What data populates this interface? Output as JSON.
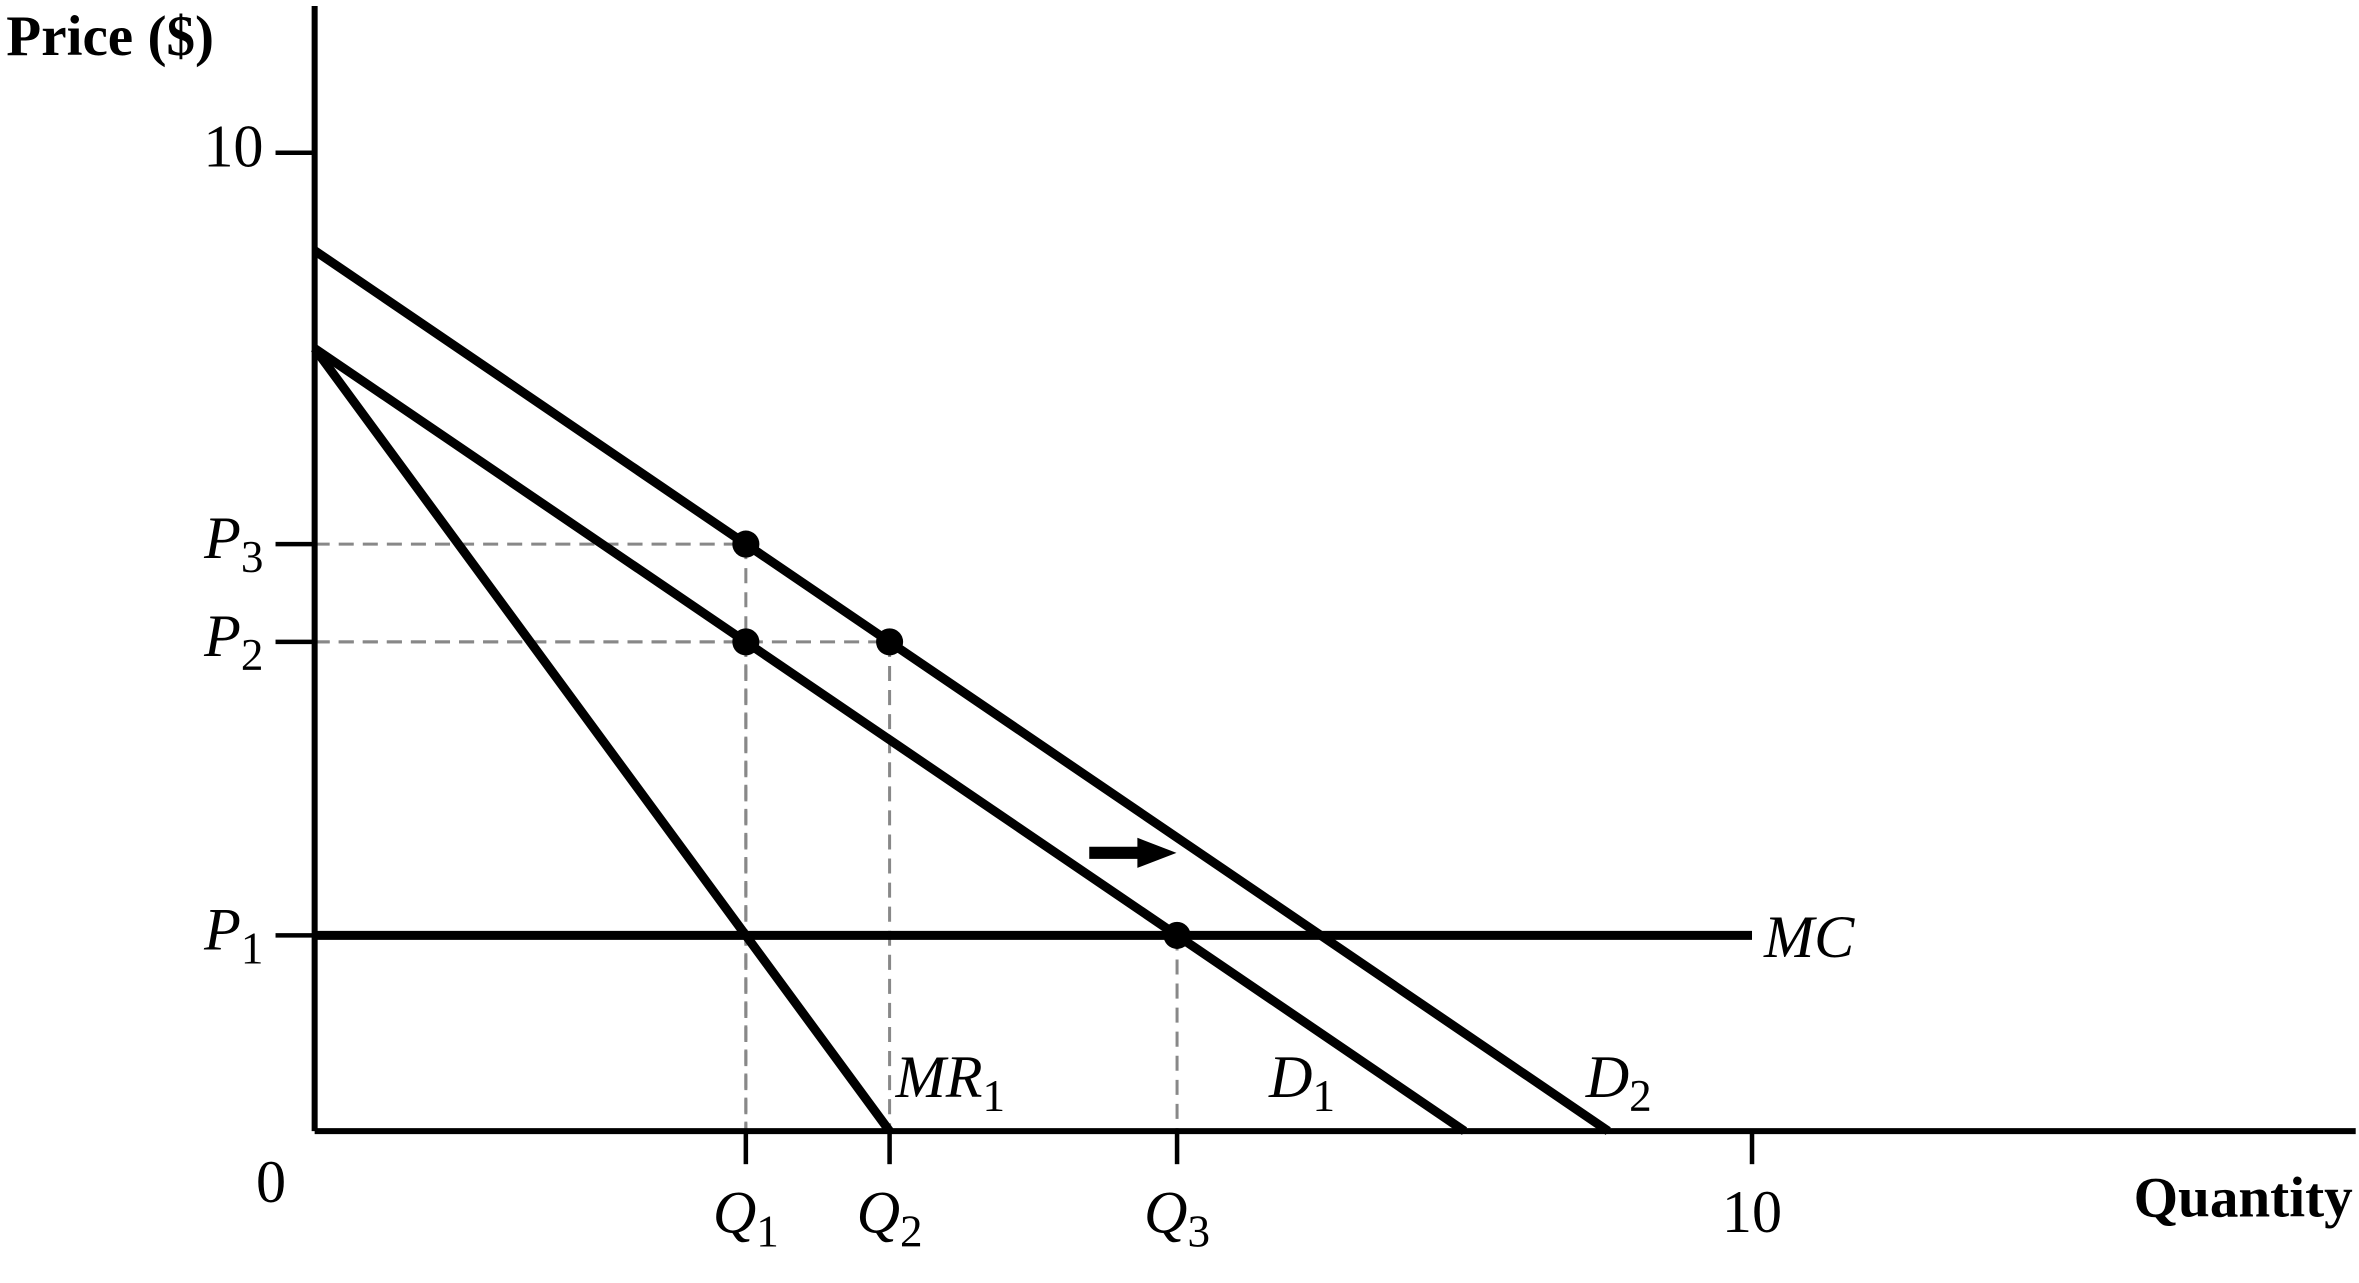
{
  "chart_data": {
    "type": "line",
    "y_label": "Price ($)",
    "x_label": "Quantity",
    "xlim": [
      0,
      14.2
    ],
    "ylim": [
      0,
      11.5
    ],
    "xticks": [
      0,
      {
        "value": 3,
        "label": "Q1"
      },
      {
        "value": 4,
        "label": "Q2"
      },
      {
        "value": 6,
        "label": "Q3"
      },
      10
    ],
    "yticks": [
      {
        "value": 2,
        "label": "P1"
      },
      {
        "value": 5,
        "label": "P2"
      },
      {
        "value": 6,
        "label": "P3"
      },
      10
    ],
    "color": "#000000",
    "series": [
      {
        "name": "D1",
        "x": [
          0,
          8
        ],
        "values": [
          8,
          0
        ]
      },
      {
        "name": "D2",
        "x": [
          0,
          9
        ],
        "values": [
          9,
          0
        ]
      },
      {
        "name": "MR1",
        "x": [
          0,
          4
        ],
        "values": [
          8,
          0
        ]
      },
      {
        "name": "MC",
        "x": [
          0,
          10
        ],
        "values": [
          2,
          2
        ]
      }
    ],
    "points": {
      "x": [
        3,
        3,
        4,
        6
      ],
      "y": [
        6,
        5,
        5,
        2
      ]
    }
  }
}
